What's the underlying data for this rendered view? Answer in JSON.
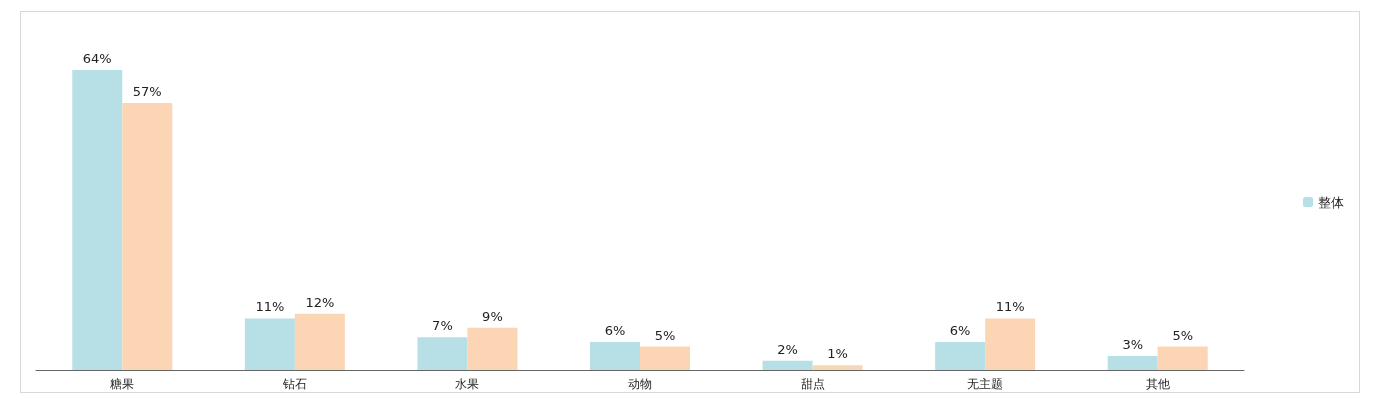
{
  "chart_data": {
    "type": "bar",
    "categories": [
      "糖果",
      "钻石",
      "水果",
      "动物",
      "甜点",
      "无主题",
      "其他"
    ],
    "series": [
      {
        "name": "整体",
        "color": "#b7dfe6",
        "values": [
          64,
          11,
          7,
          6,
          2,
          6,
          3
        ],
        "value_labels": [
          "64%",
          "11%",
          "7%",
          "6%",
          "2%",
          "6%",
          "3%"
        ]
      },
      {
        "color": "#fcd5b5",
        "values": [
          57,
          12,
          9,
          5,
          1,
          11,
          5
        ],
        "value_labels": [
          "57%",
          "12%",
          "9%",
          "5%",
          "1%",
          "11%",
          "5%"
        ]
      }
    ],
    "grid": false,
    "legend": "right"
  }
}
